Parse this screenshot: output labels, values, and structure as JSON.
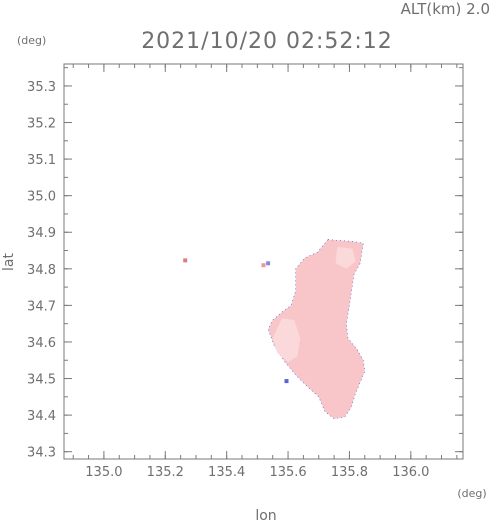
{
  "header": {
    "altitude_label": "ALT(km) 2.0",
    "timestamp": "2021/10/20 02:52:12"
  },
  "units": {
    "lat_unit": "(deg)",
    "lon_unit": "(deg)"
  },
  "axes": {
    "xlabel": "lon",
    "ylabel": "lat",
    "xlim": [
      134.87,
      136.17
    ],
    "ylim": [
      34.28,
      35.36
    ],
    "xticks": [
      135.0,
      135.2,
      135.4,
      135.6,
      135.8,
      136.0
    ],
    "xtick_labels": [
      "135.0",
      "135.2",
      "135.4",
      "135.6",
      "135.8",
      "136.0"
    ],
    "yticks": [
      34.3,
      34.4,
      34.5,
      34.6,
      34.7,
      34.8,
      34.9,
      35.0,
      35.1,
      35.2,
      35.3
    ],
    "ytick_labels": [
      "34.3",
      "34.4",
      "34.5",
      "34.6",
      "34.7",
      "34.8",
      "34.9",
      "35.0",
      "35.1",
      "35.2",
      "35.3"
    ],
    "grid": false
  },
  "chart_data": {
    "type": "heatmap",
    "colors": {
      "echo_main": "#f8c6c8",
      "echo_light": "#fbd8da",
      "echo_edge": "#3a4bd8",
      "frame": "#7a7a7a"
    },
    "echo_regions": [
      {
        "lonlat": [
          [
            135.73,
            34.88
          ],
          [
            135.81,
            34.875
          ],
          [
            135.845,
            34.87
          ],
          [
            135.835,
            34.815
          ],
          [
            135.815,
            34.785
          ],
          [
            135.8,
            34.7
          ],
          [
            135.79,
            34.65
          ],
          [
            135.795,
            34.61
          ],
          [
            135.825,
            34.58
          ],
          [
            135.845,
            34.55
          ],
          [
            135.85,
            34.52
          ],
          [
            135.835,
            34.49
          ],
          [
            135.82,
            34.46
          ],
          [
            135.805,
            34.42
          ],
          [
            135.785,
            34.395
          ],
          [
            135.75,
            34.39
          ],
          [
            135.72,
            34.41
          ],
          [
            135.7,
            34.45
          ],
          [
            135.66,
            34.48
          ],
          [
            135.625,
            34.51
          ],
          [
            135.59,
            34.545
          ],
          [
            135.555,
            34.59
          ],
          [
            135.535,
            34.635
          ],
          [
            135.55,
            34.66
          ],
          [
            135.585,
            34.685
          ],
          [
            135.61,
            34.7
          ],
          [
            135.625,
            34.74
          ],
          [
            135.625,
            34.8
          ],
          [
            135.655,
            34.83
          ],
          [
            135.695,
            34.845
          ]
        ]
      }
    ],
    "light_patches": [
      {
        "lonlat": [
          [
            135.58,
            34.665
          ],
          [
            135.62,
            34.66
          ],
          [
            135.64,
            34.61
          ],
          [
            135.63,
            34.56
          ],
          [
            135.6,
            34.545
          ],
          [
            135.565,
            34.57
          ],
          [
            135.55,
            34.61
          ]
        ]
      },
      {
        "lonlat": [
          [
            135.76,
            34.86
          ],
          [
            135.81,
            34.855
          ],
          [
            135.82,
            34.82
          ],
          [
            135.79,
            34.8
          ],
          [
            135.755,
            34.815
          ]
        ]
      }
    ],
    "small_echoes": [
      {
        "lon": 135.595,
        "lat": 34.493,
        "color": "#5564d8"
      },
      {
        "lon": 135.265,
        "lat": 34.823,
        "color": "#d67e84"
      },
      {
        "lon": 135.52,
        "lat": 34.81,
        "color": "#e49aa0"
      },
      {
        "lon": 135.535,
        "lat": 34.815,
        "color": "#8a86d8"
      }
    ]
  }
}
